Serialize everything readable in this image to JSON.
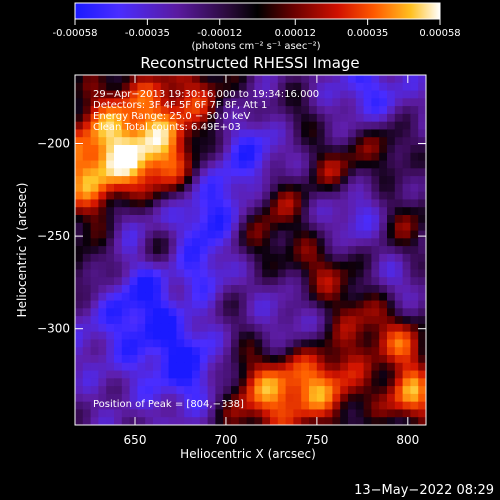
{
  "colorbar": {
    "tick_labels": [
      "-0.00058",
      "-0.00035",
      "-0.00012",
      "0.00012",
      "0.00035",
      "0.00058"
    ],
    "tick_values": [
      -0.00058,
      -0.00035,
      -0.00012,
      0.00012,
      0.00035,
      0.00058
    ],
    "range": [
      -0.00058,
      0.00058
    ],
    "units": "(photons cm⁻² s⁻¹ asec⁻²)"
  },
  "chart_data": {
    "type": "heatmap",
    "title": "Reconstructed RHESSI Image",
    "xlabel": "Heliocentric X (arcsec)",
    "ylabel": "Heliocentric Y (arcsec)",
    "xlim": [
      617,
      810
    ],
    "ylim": [
      -352,
      -163
    ],
    "x_ticks": [
      650,
      700,
      750,
      800
    ],
    "x_tick_labels": [
      "650",
      "700",
      "750",
      "800"
    ],
    "y_ticks": [
      -200,
      -250,
      -300
    ],
    "y_tick_labels": [
      "−200",
      "−250",
      "−300"
    ],
    "colormap": "blue-black-red-yellow-white",
    "annotations": [
      "29−Apr−2013 19:30:16.000 to 19:34:16.000",
      "Detectors: 3F 4F 5F 6F 7F 8F, Att 1",
      "Energy Range: 25.0 − 50.0 keV",
      "Clean     Total counts: 6.49E+03"
    ],
    "peak_label": "Position of Peak = [804,−338]",
    "peak_position": [
      804,
      -338
    ]
  },
  "timestamp": "13−May−2022 08:29"
}
